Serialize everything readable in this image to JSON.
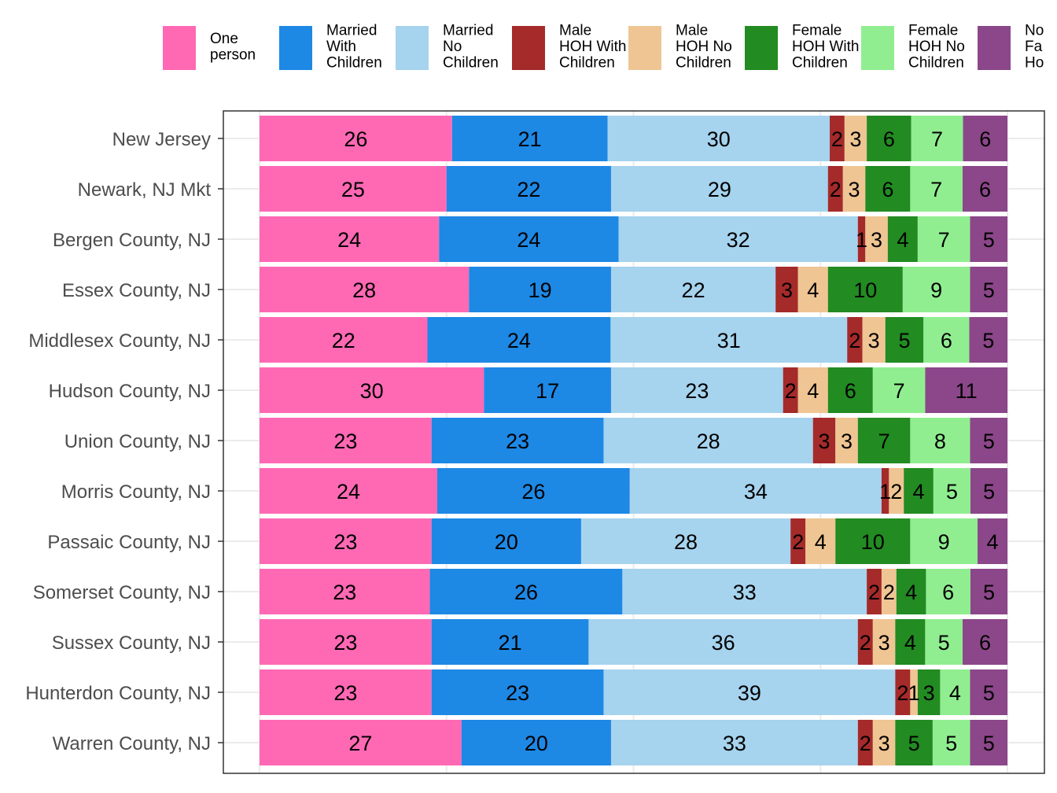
{
  "chart_data": {
    "type": "bar",
    "orientation": "horizontal",
    "stacked": true,
    "normalized": true,
    "grid": true,
    "legend_position": "top",
    "categories": [
      "New Jersey",
      "Newark, NJ Mkt",
      "Bergen County, NJ",
      "Essex County, NJ",
      "Middlesex County, NJ",
      "Hudson County, NJ",
      "Union County, NJ",
      "Morris County, NJ",
      "Passaic County, NJ",
      "Somerset County, NJ",
      "Sussex County, NJ",
      "Hunterdon County, NJ",
      "Warren County, NJ"
    ],
    "series": [
      {
        "name": "One person",
        "legend_lines": [
          "One",
          "person"
        ],
        "color": "#ff69b4",
        "values": [
          26,
          25,
          24,
          28,
          22,
          30,
          23,
          24,
          23,
          23,
          23,
          23,
          27
        ]
      },
      {
        "name": "Married With Children",
        "legend_lines": [
          "Married",
          "With",
          "Children"
        ],
        "color": "#1e88e5",
        "values": [
          21,
          22,
          24,
          19,
          24,
          17,
          23,
          26,
          20,
          26,
          21,
          23,
          20
        ]
      },
      {
        "name": "Married No Children",
        "legend_lines": [
          "Married",
          "No",
          "Children"
        ],
        "color": "#a6d3ee",
        "values": [
          30,
          29,
          32,
          22,
          31,
          23,
          28,
          34,
          28,
          33,
          36,
          39,
          33
        ]
      },
      {
        "name": "Male HOH With Children",
        "legend_lines": [
          "Male",
          "HOH With",
          "Children"
        ],
        "color": "#a52a2a",
        "values": [
          2,
          2,
          1,
          3,
          2,
          2,
          3,
          1,
          2,
          2,
          2,
          2,
          2
        ]
      },
      {
        "name": "Male HOH No Children",
        "legend_lines": [
          "Male",
          "HOH No",
          "Children"
        ],
        "color": "#efc593",
        "values": [
          3,
          3,
          3,
          4,
          3,
          4,
          3,
          2,
          4,
          2,
          3,
          1,
          3
        ]
      },
      {
        "name": "Female HOH With Children",
        "legend_lines": [
          "Female",
          "HOH With",
          "Children"
        ],
        "color": "#228b22",
        "values": [
          6,
          6,
          4,
          10,
          5,
          6,
          7,
          4,
          10,
          4,
          4,
          3,
          5
        ]
      },
      {
        "name": "Female HOH No Children",
        "legend_lines": [
          "Female",
          "HOH No",
          "Children"
        ],
        "color": "#90ee90",
        "values": [
          7,
          7,
          7,
          9,
          6,
          7,
          8,
          5,
          9,
          6,
          5,
          4,
          5
        ]
      },
      {
        "name": "Non Family Household",
        "legend_lines": [
          "No",
          "Fa",
          "Ho"
        ],
        "color": "#8b4789",
        "values": [
          6,
          6,
          5,
          5,
          5,
          11,
          5,
          5,
          4,
          5,
          6,
          5,
          5
        ]
      }
    ]
  }
}
